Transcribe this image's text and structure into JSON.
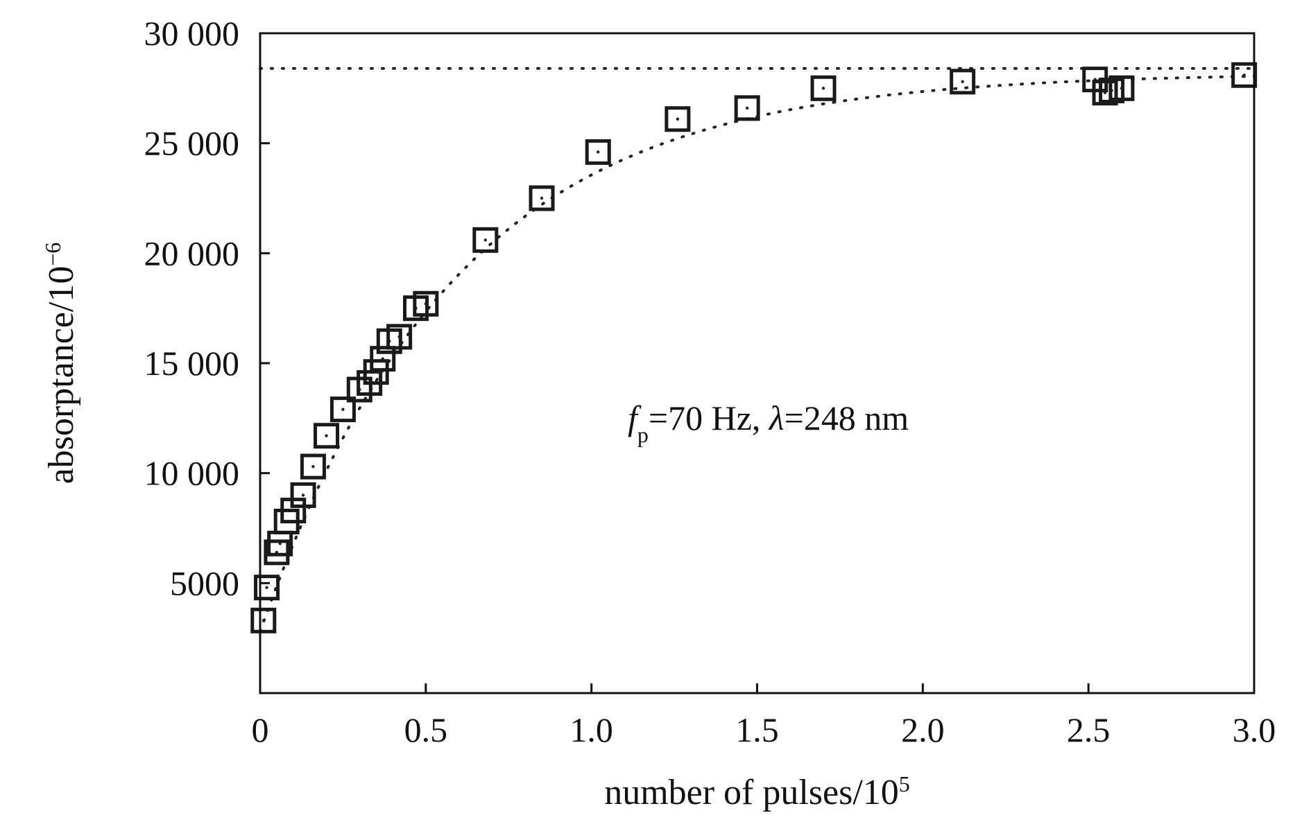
{
  "chart_data": {
    "type": "scatter",
    "xlabel": "number of pulses/10",
    "xlabel_sup": "5",
    "ylabel": "absorptance/10",
    "ylabel_sup": "−6",
    "xlim": [
      0,
      3.0
    ],
    "ylim": [
      0,
      30000
    ],
    "x_ticks": [
      {
        "value": 0,
        "label": "0"
      },
      {
        "value": 0.5,
        "label": "0.5"
      },
      {
        "value": 1.0,
        "label": "1.0"
      },
      {
        "value": 1.5,
        "label": "1.5"
      },
      {
        "value": 2.0,
        "label": "2.0"
      },
      {
        "value": 2.5,
        "label": "2.5"
      },
      {
        "value": 3.0,
        "label": "3.0"
      }
    ],
    "y_ticks": [
      {
        "value": 5000,
        "label": "5000"
      },
      {
        "value": 10000,
        "label": "10 000"
      },
      {
        "value": 15000,
        "label": "15 000"
      },
      {
        "value": 20000,
        "label": "20 000"
      },
      {
        "value": 25000,
        "label": "25 000"
      },
      {
        "value": 30000,
        "label": "30 000"
      }
    ],
    "grid": false,
    "legend": "none",
    "annotation": {
      "f_symbol": "f",
      "f_sub": "p",
      "f_rest": "=70 Hz, ",
      "lambda_symbol": "λ",
      "lambda_rest": "=248 nm"
    },
    "series": [
      {
        "marker": "square",
        "x": [
          0.01,
          0.02,
          0.05,
          0.06,
          0.08,
          0.1,
          0.13,
          0.16,
          0.2,
          0.25,
          0.3,
          0.33,
          0.35,
          0.37,
          0.39,
          0.42,
          0.47,
          0.5,
          0.68,
          0.85,
          1.02,
          1.26,
          1.47,
          1.7,
          2.12,
          2.52,
          2.55,
          2.57,
          2.6,
          2.97
        ],
        "y": [
          3300,
          4800,
          6400,
          6800,
          7800,
          8300,
          9000,
          10300,
          11700,
          12900,
          13800,
          14100,
          14600,
          15200,
          16000,
          16200,
          17500,
          17700,
          20600,
          22500,
          24600,
          26100,
          26600,
          27500,
          27800,
          27900,
          27300,
          27400,
          27500,
          28100
        ]
      }
    ],
    "fit_curves": [
      {
        "style": "dotted",
        "kind": "saturating",
        "asymptote": 28200,
        "start": 2800,
        "rate": 1.7
      },
      {
        "style": "dotted",
        "kind": "horizontal",
        "y": 28400
      }
    ]
  }
}
